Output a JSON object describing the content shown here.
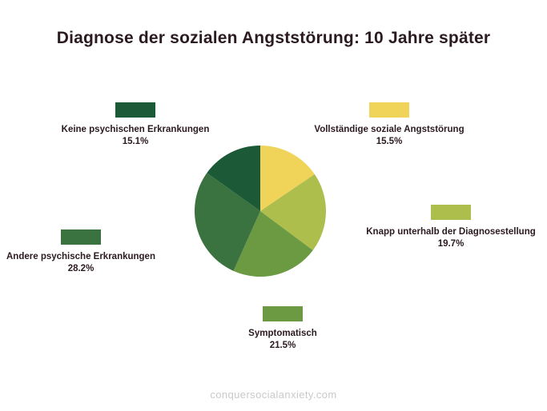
{
  "title": "Diagnose der sozialen Angststörung: 10 Jahre später",
  "watermark": "conquersocialanxiety.com",
  "chart_data": {
    "type": "pie",
    "title": "Diagnose der sozialen Angststörung: 10 Jahre später",
    "slices": [
      {
        "label": "Vollständige soziale Angststörung",
        "value": 15.5,
        "value_label": "15.5%",
        "color": "#f0d45a"
      },
      {
        "label": "Knapp unterhalb der Diagnosestellung",
        "value": 19.7,
        "value_label": "19.7%",
        "color": "#aebe4c"
      },
      {
        "label": "Symptomatisch",
        "value": 21.5,
        "value_label": "21.5%",
        "color": "#6b9a43"
      },
      {
        "label": "Andere psychische Erkrankungen",
        "value": 28.2,
        "value_label": "28.2%",
        "color": "#3b7340"
      },
      {
        "label": "Keine psychischen Erkrankungen",
        "value": 15.1,
        "value_label": "15.1%",
        "color": "#1c5a37"
      }
    ]
  }
}
